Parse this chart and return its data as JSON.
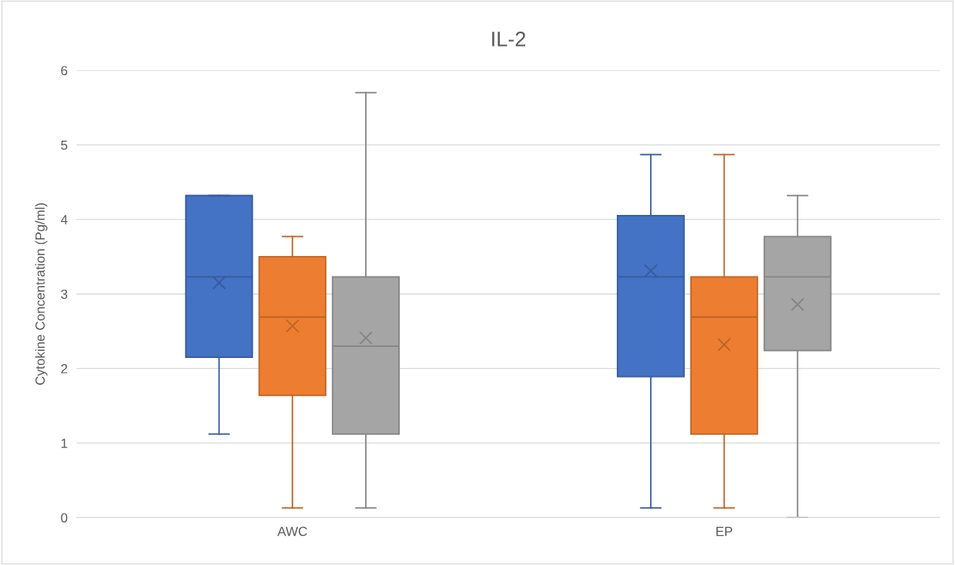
{
  "chart_data": {
    "type": "box",
    "title": "IL-2",
    "ylabel": "Cytokine Concentration (Pg/ml)",
    "categories": [
      "AWC",
      "EP"
    ],
    "ylim": [
      0,
      6
    ],
    "yticks": [
      0,
      1,
      2,
      3,
      4,
      5,
      6
    ],
    "grid": "y",
    "legend": false,
    "series": [
      {
        "color": "#4472c4",
        "boxes": [
          {
            "low": 1.12,
            "q1": 2.15,
            "median": 3.23,
            "q3": 4.32,
            "high": 4.32,
            "mean": 3.15
          },
          {
            "low": 0.13,
            "q1": 1.89,
            "median": 3.23,
            "q3": 4.05,
            "high": 4.87,
            "mean": 3.31
          }
        ]
      },
      {
        "color": "#ed7d31",
        "boxes": [
          {
            "low": 0.13,
            "q1": 1.64,
            "median": 2.69,
            "q3": 3.5,
            "high": 3.77,
            "mean": 2.57
          },
          {
            "low": 0.13,
            "q1": 1.12,
            "median": 2.69,
            "q3": 3.23,
            "high": 4.87,
            "mean": 2.32
          }
        ]
      },
      {
        "color": "#a5a5a5",
        "boxes": [
          {
            "low": 0.13,
            "q1": 1.12,
            "median": 2.3,
            "q3": 3.23,
            "high": 5.7,
            "mean": 2.41
          },
          {
            "low": 0,
            "q1": 2.24,
            "median": 3.23,
            "q3": 3.77,
            "high": 4.32,
            "mean": 2.86
          }
        ]
      }
    ]
  }
}
